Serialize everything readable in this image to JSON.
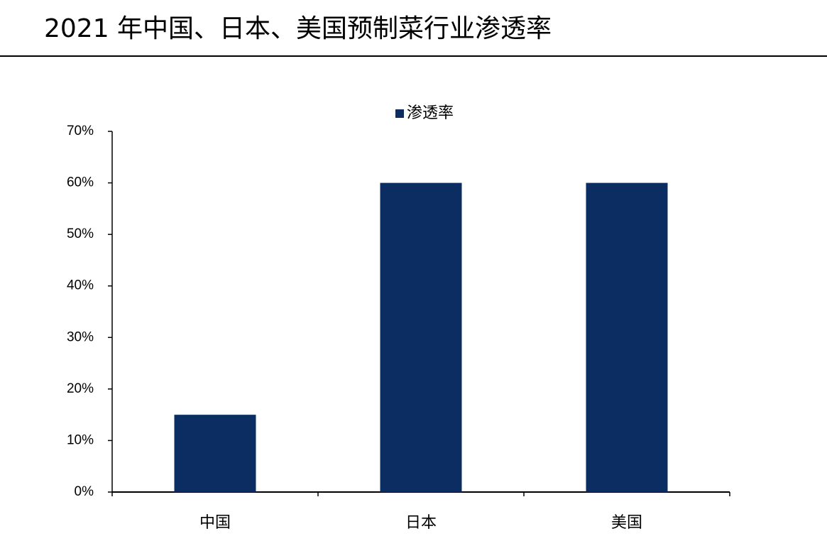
{
  "chart_data": {
    "type": "bar",
    "title": "2021 年中国、日本、美国预制菜行业渗透率",
    "categories": [
      "中国",
      "日本",
      "美国"
    ],
    "series": [
      {
        "name": "渗透率",
        "color": "#0b2d62",
        "values": [
          15,
          60,
          60
        ]
      }
    ],
    "ylim": [
      0,
      70
    ],
    "yticks": [
      {
        "value": 0,
        "label": "0%"
      },
      {
        "value": 10,
        "label": "10%"
      },
      {
        "value": 20,
        "label": "20%"
      },
      {
        "value": 30,
        "label": "30%"
      },
      {
        "value": 40,
        "label": "40%"
      },
      {
        "value": 50,
        "label": "50%"
      },
      {
        "value": 60,
        "label": "60%"
      },
      {
        "value": 70,
        "label": "70%"
      }
    ],
    "legend": "top"
  }
}
